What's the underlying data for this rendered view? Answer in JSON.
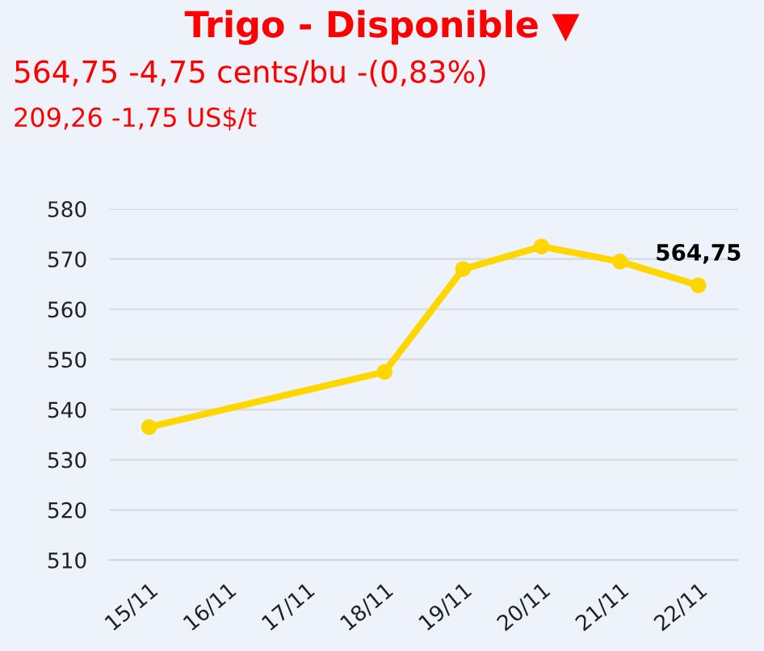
{
  "chart_data": {
    "type": "line",
    "title": "Trigo - Disponible ▼",
    "subtitle": "564,75 -4,75 cents/bu -(0,83%)",
    "annotations": [
      "209,26 -1,75 US$/t"
    ],
    "categories": [
      "15/11",
      "16/11",
      "17/11",
      "18/11",
      "19/11",
      "20/11",
      "21/11",
      "22/11"
    ],
    "series": [
      {
        "color": "#ffd700",
        "x": [
          "15/11",
          "18/11",
          "19/11",
          "20/11",
          "21/11",
          "22/11"
        ],
        "values": [
          536.5,
          547.5,
          568,
          572.5,
          569.5,
          564.75
        ],
        "value_labels": [
          null,
          null,
          null,
          null,
          null,
          "564,75"
        ]
      }
    ],
    "ylim": [
      510,
      580
    ],
    "yticks": [
      510,
      520,
      530,
      540,
      550,
      560,
      570,
      580
    ],
    "grid": "y",
    "marker": "circle",
    "line_style": "solid"
  }
}
